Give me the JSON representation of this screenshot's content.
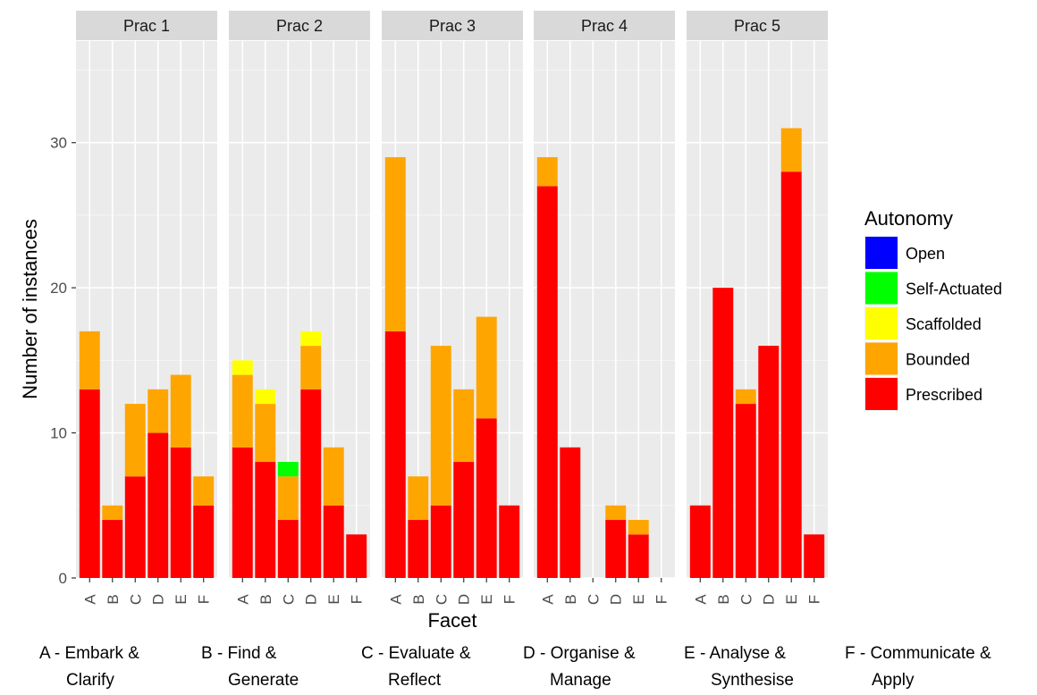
{
  "chart_data": {
    "type": "bar",
    "stacked": true,
    "facet_variable": "Prac",
    "panels": [
      "Prac 1",
      "Prac 2",
      "Prac 3",
      "Prac 4",
      "Prac 5"
    ],
    "categories": [
      "A",
      "B",
      "C",
      "D",
      "E",
      "F"
    ],
    "xlabel": "Facet",
    "ylabel": "Number of instances",
    "ylim": [
      0,
      37
    ],
    "y_ticks": [
      0,
      10,
      20,
      30
    ],
    "grid": true,
    "legend_title": "Autonomy",
    "legend_position": "right",
    "series": [
      {
        "name": "Open",
        "color": "#0000FF",
        "values": [
          [
            0,
            0,
            0,
            0,
            0,
            0
          ],
          [
            0,
            0,
            0,
            0,
            0,
            0
          ],
          [
            0,
            0,
            0,
            0,
            0,
            0
          ],
          [
            0,
            0,
            0,
            0,
            0,
            0
          ],
          [
            0,
            0,
            0,
            0,
            0,
            0
          ]
        ]
      },
      {
        "name": "Self-Actuated",
        "color": "#00FF00",
        "values": [
          [
            0,
            0,
            0,
            0,
            0,
            0
          ],
          [
            0,
            0,
            1,
            0,
            0,
            0
          ],
          [
            0,
            0,
            0,
            0,
            0,
            0
          ],
          [
            0,
            0,
            0,
            0,
            0,
            0
          ],
          [
            0,
            0,
            0,
            0,
            0,
            0
          ]
        ]
      },
      {
        "name": "Scaffolded",
        "color": "#FFFF00",
        "values": [
          [
            0,
            0,
            0,
            0,
            0,
            0
          ],
          [
            1,
            1,
            0,
            1,
            0,
            0
          ],
          [
            0,
            0,
            0,
            0,
            0,
            0
          ],
          [
            0,
            0,
            0,
            0,
            0,
            0
          ],
          [
            0,
            0,
            0,
            0,
            0,
            0
          ]
        ]
      },
      {
        "name": "Bounded",
        "color": "#FFA500",
        "values": [
          [
            4,
            1,
            5,
            3,
            5,
            2
          ],
          [
            5,
            4,
            3,
            3,
            4,
            0
          ],
          [
            12,
            3,
            11,
            5,
            7,
            0
          ],
          [
            2,
            0,
            0,
            1,
            1,
            0
          ],
          [
            0,
            0,
            1,
            0,
            3,
            0
          ]
        ]
      },
      {
        "name": "Prescribed",
        "color": "#FF0000",
        "values": [
          [
            13,
            4,
            7,
            10,
            9,
            5
          ],
          [
            9,
            8,
            4,
            13,
            5,
            3
          ],
          [
            17,
            4,
            5,
            8,
            11,
            5
          ],
          [
            27,
            9,
            0,
            4,
            3,
            0
          ],
          [
            5,
            20,
            12,
            16,
            28,
            3
          ]
        ]
      }
    ],
    "facet_notes": [
      {
        "line1": "A - Embark &",
        "line2": "Clarify"
      },
      {
        "line1": "B - Find &",
        "line2": "Generate"
      },
      {
        "line1": "C - Evaluate &",
        "line2": "Reflect"
      },
      {
        "line1": "D - Organise &",
        "line2": "Manage"
      },
      {
        "line1": "E - Analyse &",
        "line2": "Synthesise"
      },
      {
        "line1": "F - Communicate &",
        "line2": "Apply"
      }
    ]
  }
}
